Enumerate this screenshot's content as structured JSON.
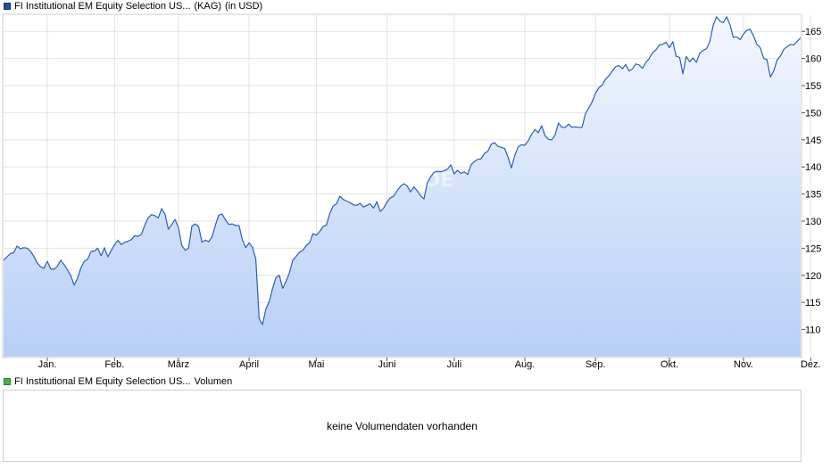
{
  "price_legend": {
    "name": "FI Institutional EM Equity Selection US...",
    "type": "(KAG)",
    "unit": "(in USD)",
    "color": "#1f4e9c"
  },
  "volume_legend": {
    "name": "FI Institutional EM Equity Selection US...",
    "label": "Volumen",
    "color": "#4caf50"
  },
  "volume_panel": {
    "message": "keine Volumendaten vorhanden"
  },
  "watermark": "ARIVA.DE",
  "chart_data": {
    "type": "area",
    "y_axis_position": "right",
    "ylim": [
      105,
      168
    ],
    "yticks": [
      110,
      115,
      120,
      125,
      130,
      135,
      140,
      145,
      150,
      155,
      160,
      165
    ],
    "x_tick_labels": [
      "Jan.",
      "Feb.",
      "März",
      "April",
      "Mai",
      "Juni",
      "Juli",
      "Aug.",
      "Sep.",
      "Okt.",
      "Nov.",
      "Dez."
    ],
    "x_tick_index": [
      13,
      33,
      52,
      73,
      93,
      114,
      134,
      155,
      176,
      198,
      220,
      240
    ],
    "grid": true,
    "line_color": "#2a5fb3",
    "fill_top_color": "#f4f7fe",
    "fill_bottom_color": "#b7cff6",
    "values": [
      122.8,
      123.4,
      124.0,
      124.2,
      125.4,
      124.9,
      125.1,
      125.0,
      124.5,
      123.5,
      122.3,
      121.6,
      121.3,
      122.6,
      121.2,
      121.1,
      121.7,
      122.8,
      122.0,
      121.0,
      119.9,
      118.2,
      119.5,
      121.4,
      122.6,
      123.0,
      124.4,
      124.5,
      125.0,
      123.6,
      125.1,
      123.4,
      124.6,
      125.6,
      126.5,
      125.7,
      126.1,
      126.3,
      126.6,
      127.3,
      127.2,
      127.6,
      129.3,
      130.6,
      131.2,
      131.0,
      130.6,
      132.3,
      131.3,
      128.5,
      129.4,
      130.3,
      128.8,
      125.5,
      124.6,
      125.0,
      129.1,
      129.5,
      129.0,
      126.1,
      126.5,
      126.2,
      127.1,
      129.3,
      131.1,
      131.3,
      130.2,
      129.4,
      129.5,
      129.2,
      129.2,
      126.6,
      125.1,
      126.0,
      125.2,
      123.0,
      112.0,
      110.9,
      113.8,
      115.2,
      117.6,
      119.6,
      120.0,
      117.6,
      118.9,
      120.5,
      122.8,
      123.5,
      124.3,
      124.6,
      125.5,
      126.0,
      127.7,
      127.4,
      128.1,
      129.0,
      129.3,
      131.4,
      132.8,
      133.2,
      134.6,
      134.0,
      133.7,
      133.4,
      133.0,
      132.9,
      133.3,
      132.6,
      132.9,
      133.2,
      132.4,
      133.6,
      131.8,
      132.4,
      133.5,
      134.3,
      134.6,
      135.6,
      136.4,
      136.9,
      136.5,
      135.4,
      136.3,
      135.6,
      134.7,
      134.1,
      137.1,
      138.2,
      139.0,
      139.2,
      139.1,
      139.3,
      139.6,
      140.4,
      138.7,
      139.4,
      138.8,
      139.1,
      138.6,
      140.4,
      141.0,
      141.4,
      141.5,
      142.5,
      142.9,
      144.2,
      144.5,
      143.8,
      143.6,
      143.4,
      141.8,
      139.8,
      142.1,
      143.7,
      144.1,
      144.0,
      144.8,
      146.0,
      146.9,
      146.3,
      147.6,
      145.8,
      145.1,
      145.0,
      145.9,
      148.1,
      147.3,
      147.3,
      147.9,
      147.3,
      147.4,
      147.3,
      147.3,
      149.8,
      150.9,
      152.0,
      153.6,
      154.6,
      155.1,
      156.2,
      156.8,
      157.7,
      158.5,
      158.7,
      158.1,
      158.9,
      157.7,
      158.1,
      159.0,
      158.8,
      158.2,
      159.3,
      160.0,
      161.1,
      161.6,
      162.5,
      162.6,
      163.0,
      162.0,
      163.1,
      160.4,
      160.2,
      157.2,
      160.4,
      159.4,
      160.1,
      159.3,
      161.0,
      161.5,
      161.8,
      163.1,
      166.1,
      167.7,
      166.9,
      166.6,
      167.7,
      166.2,
      163.9,
      164.0,
      163.5,
      164.5,
      165.2,
      165.4,
      164.2,
      162.6,
      162.0,
      160.0,
      159.8,
      156.6,
      157.7,
      159.7,
      160.5,
      161.7,
      162.2,
      162.6,
      162.5,
      163.2,
      163.8
    ]
  }
}
